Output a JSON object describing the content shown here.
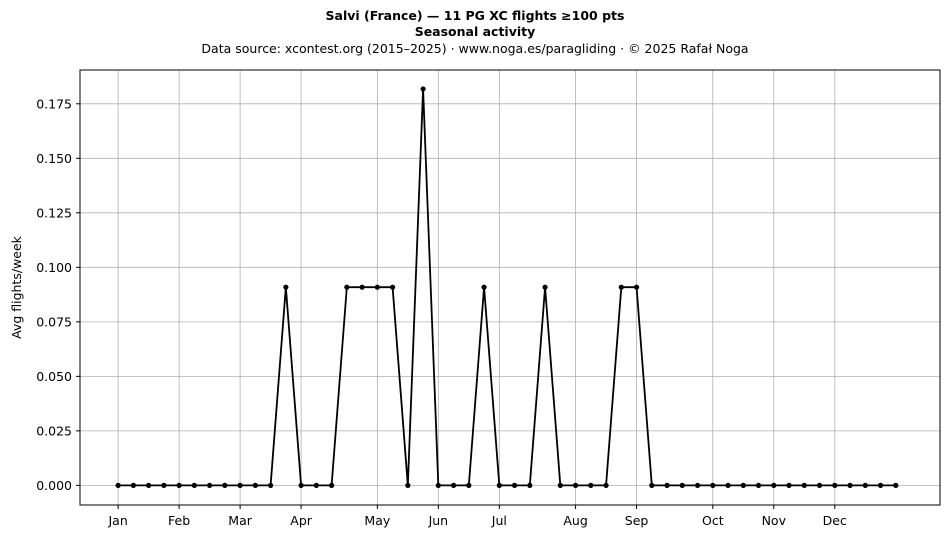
{
  "chart_data": {
    "type": "line",
    "title": "Salvi (France)  —  11 PG XC flights ≥100 pts",
    "subtitle": "Seasonal activity",
    "source_line": "Data source: xcontest.org (2015–2025)  ·  www.noga.es/paragliding  ·  © 2025 Rafał Noga",
    "xlabel": "",
    "ylabel": "Avg flights/week",
    "x_unit": "week of year",
    "xlim": [
      -2.5,
      53.9
    ],
    "ylim": [
      -0.009,
      0.1905
    ],
    "grid": true,
    "month_ticks": [
      {
        "label": "Jan",
        "week": 0
      },
      {
        "label": "Feb",
        "week": 4
      },
      {
        "label": "Mar",
        "week": 8
      },
      {
        "label": "Apr",
        "week": 12
      },
      {
        "label": "May",
        "week": 17
      },
      {
        "label": "Jun",
        "week": 21
      },
      {
        "label": "Jul",
        "week": 25
      },
      {
        "label": "Aug",
        "week": 30
      },
      {
        "label": "Sep",
        "week": 34
      },
      {
        "label": "Oct",
        "week": 39
      },
      {
        "label": "Nov",
        "week": 43
      },
      {
        "label": "Dec",
        "week": 47
      }
    ],
    "y_ticks": [
      {
        "value": 0.0,
        "label": "0.000"
      },
      {
        "value": 0.025,
        "label": "0.025"
      },
      {
        "value": 0.05,
        "label": "0.050"
      },
      {
        "value": 0.075,
        "label": "0.075"
      },
      {
        "value": 0.1,
        "label": "0.100"
      },
      {
        "value": 0.125,
        "label": "0.125"
      },
      {
        "value": 0.15,
        "label": "0.150"
      },
      {
        "value": 0.175,
        "label": "0.175"
      }
    ],
    "series": [
      {
        "color": "#000000",
        "x": [
          0,
          1,
          2,
          3,
          4,
          5,
          6,
          7,
          8,
          9,
          10,
          11,
          12,
          13,
          14,
          15,
          16,
          17,
          18,
          19,
          20,
          21,
          22,
          23,
          24,
          25,
          26,
          27,
          28,
          29,
          30,
          31,
          32,
          33,
          34,
          35,
          36,
          37,
          38,
          39,
          40,
          41,
          42,
          43,
          44,
          45,
          46,
          47,
          48,
          49,
          50,
          51
        ],
        "values": [
          0,
          0,
          0,
          0,
          0,
          0,
          0,
          0,
          0,
          0,
          0,
          0.0909,
          0,
          0,
          0,
          0.0909,
          0.0909,
          0.0909,
          0.0909,
          0,
          0.1818,
          0,
          0,
          0,
          0.0909,
          0,
          0,
          0,
          0.0909,
          0,
          0,
          0,
          0,
          0.0909,
          0.0909,
          0,
          0,
          0,
          0,
          0,
          0,
          0,
          0,
          0,
          0,
          0,
          0,
          0,
          0,
          0,
          0,
          0
        ]
      }
    ]
  }
}
